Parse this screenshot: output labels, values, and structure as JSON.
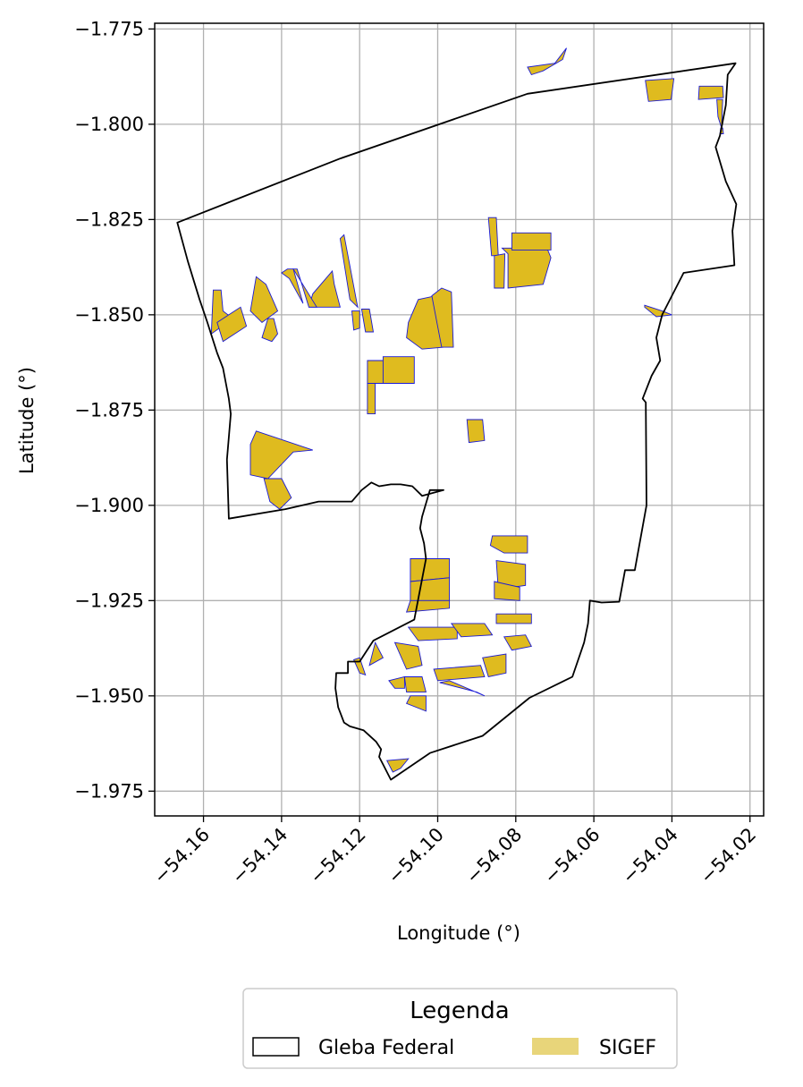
{
  "chart_data": {
    "type": "map",
    "xlabel": "Longitude (°)",
    "ylabel": "Latitude (°)",
    "xlim": [
      -54.1725,
      -54.0165
    ],
    "ylim": [
      -1.9815,
      -1.7735
    ],
    "xticks": [
      -54.16,
      -54.14,
      -54.12,
      -54.1,
      -54.08,
      -54.06,
      -54.04,
      -54.02
    ],
    "xtick_labels": [
      "−54.16",
      "−54.14",
      "−54.12",
      "−54.10",
      "−54.08",
      "−54.06",
      "−54.04",
      "−54.02"
    ],
    "yticks": [
      -1.775,
      -1.8,
      -1.825,
      -1.85,
      -1.875,
      -1.9,
      -1.925,
      -1.95,
      -1.975
    ],
    "ytick_labels": [
      "−1.775",
      "−1.800",
      "−1.825",
      "−1.850",
      "−1.875",
      "−1.900",
      "−1.925",
      "−1.950",
      "−1.975"
    ],
    "grid": true,
    "legend": {
      "title": "Legenda",
      "placement": "bottom-center, below axes",
      "entries": [
        {
          "label": "Gleba Federal",
          "style": "outline",
          "color": "#000000"
        },
        {
          "label": "SIGEF",
          "style": "fill",
          "color": "#e8d57a"
        }
      ]
    },
    "colors": {
      "gleba_outline": "#000000",
      "sigef_fill": "#dfbb1f",
      "sigef_edge": "#1a1ad6",
      "grid": "#b0b0b0"
    },
    "gleba_boundary": [
      [
        -54.1667,
        -1.8258
      ],
      [
        -54.125,
        -1.809
      ],
      [
        -54.077,
        -1.792
      ],
      [
        -54.0237,
        -1.784
      ],
      [
        -54.0257,
        -1.787
      ],
      [
        -54.0262,
        -1.795
      ],
      [
        -54.0277,
        -1.803
      ],
      [
        -54.0288,
        -1.806
      ],
      [
        -54.0262,
        -1.815
      ],
      [
        -54.0235,
        -1.821
      ],
      [
        -54.0245,
        -1.828
      ],
      [
        -54.024,
        -1.837
      ],
      [
        -54.037,
        -1.839
      ],
      [
        -54.0425,
        -1.85
      ],
      [
        -54.044,
        -1.856
      ],
      [
        -54.043,
        -1.862
      ],
      [
        -54.0452,
        -1.866
      ],
      [
        -54.0475,
        -1.872
      ],
      [
        -54.0467,
        -1.873
      ],
      [
        -54.0465,
        -1.9
      ],
      [
        -54.0495,
        -1.917
      ],
      [
        -54.052,
        -1.917
      ],
      [
        -54.0535,
        -1.9253
      ],
      [
        -54.058,
        -1.9255
      ],
      [
        -54.061,
        -1.925
      ],
      [
        -54.0615,
        -1.931
      ],
      [
        -54.0625,
        -1.936
      ],
      [
        -54.0655,
        -1.945
      ],
      [
        -54.0765,
        -1.9505
      ],
      [
        -54.0885,
        -1.9605
      ],
      [
        -54.102,
        -1.965
      ],
      [
        -54.112,
        -1.972
      ],
      [
        -54.114,
        -1.968
      ],
      [
        -54.115,
        -1.966
      ],
      [
        -54.1145,
        -1.964
      ],
      [
        -54.1158,
        -1.962
      ],
      [
        -54.119,
        -1.959
      ],
      [
        -54.1225,
        -1.958
      ],
      [
        -54.124,
        -1.957
      ],
      [
        -54.1255,
        -1.953
      ],
      [
        -54.1262,
        -1.948
      ],
      [
        -54.126,
        -1.944
      ],
      [
        -54.123,
        -1.944
      ],
      [
        -54.123,
        -1.941
      ],
      [
        -54.12,
        -1.941
      ],
      [
        -54.1165,
        -1.9355
      ],
      [
        -54.106,
        -1.93
      ],
      [
        -54.103,
        -1.914
      ],
      [
        -54.1035,
        -1.91
      ],
      [
        -54.1045,
        -1.906
      ],
      [
        -54.104,
        -1.903
      ],
      [
        -54.102,
        -1.896
      ],
      [
        -54.0985,
        -1.896
      ],
      [
        -54.104,
        -1.8975
      ],
      [
        -54.1065,
        -1.895
      ],
      [
        -54.1095,
        -1.8945
      ],
      [
        -54.112,
        -1.8945
      ],
      [
        -54.115,
        -1.895
      ],
      [
        -54.117,
        -1.894
      ],
      [
        -54.1195,
        -1.896
      ],
      [
        -54.122,
        -1.899
      ],
      [
        -54.124,
        -1.899
      ],
      [
        -54.128,
        -1.899
      ],
      [
        -54.1305,
        -1.899
      ],
      [
        -54.139,
        -1.901
      ],
      [
        -54.1535,
        -1.9035
      ],
      [
        -54.154,
        -1.888
      ],
      [
        -54.153,
        -1.876
      ],
      [
        -54.1535,
        -1.872
      ],
      [
        -54.155,
        -1.864
      ],
      [
        -54.1565,
        -1.86
      ],
      [
        -54.159,
        -1.852
      ],
      [
        -54.161,
        -1.846
      ],
      [
        -54.164,
        -1.836
      ],
      [
        -54.1667,
        -1.8258
      ]
    ],
    "sigef_parcels": [
      [
        [
          -54.067,
          -1.78
        ],
        [
          -54.068,
          -1.783
        ],
        [
          -54.073,
          -1.786
        ],
        [
          -54.076,
          -1.787
        ],
        [
          -54.077,
          -1.785
        ],
        [
          -54.07,
          -1.784
        ]
      ],
      [
        [
          -54.0468,
          -1.7885
        ],
        [
          -54.046,
          -1.794
        ],
        [
          -54.0402,
          -1.7935
        ],
        [
          -54.0395,
          -1.788
        ]
      ],
      [
        [
          -54.033,
          -1.79
        ],
        [
          -54.027,
          -1.79
        ],
        [
          -54.0268,
          -1.793
        ],
        [
          -54.0332,
          -1.7935
        ]
      ],
      [
        [
          -54.0285,
          -1.7935
        ],
        [
          -54.027,
          -1.7935
        ],
        [
          -54.0273,
          -1.801
        ],
        [
          -54.0282,
          -1.798
        ]
      ],
      [
        [
          -54.0275,
          -1.801
        ],
        [
          -54.027,
          -1.801
        ],
        [
          -54.0268,
          -1.8025
        ],
        [
          -54.0277,
          -1.8025
        ]
      ],
      [
        [
          -54.087,
          -1.8245
        ],
        [
          -54.085,
          -1.8245
        ],
        [
          -54.0845,
          -1.8345
        ],
        [
          -54.0862,
          -1.8345
        ]
      ],
      [
        [
          -54.0855,
          -1.8345
        ],
        [
          -54.0855,
          -1.843
        ],
        [
          -54.083,
          -1.843
        ],
        [
          -54.0828,
          -1.834
        ]
      ],
      [
        [
          -54.0835,
          -1.8325
        ],
        [
          -54.082,
          -1.834
        ],
        [
          -54.082,
          -1.843
        ],
        [
          -54.073,
          -1.842
        ],
        [
          -54.071,
          -1.835
        ],
        [
          -54.072,
          -1.8325
        ]
      ],
      [
        [
          -54.081,
          -1.8285
        ],
        [
          -54.071,
          -1.8285
        ],
        [
          -54.071,
          -1.833
        ],
        [
          -54.081,
          -1.833
        ]
      ],
      [
        [
          -54.125,
          -1.83
        ],
        [
          -54.124,
          -1.829
        ],
        [
          -54.1205,
          -1.848
        ],
        [
          -54.1225,
          -1.846
        ]
      ],
      [
        [
          -54.133,
          -1.848
        ],
        [
          -54.125,
          -1.848
        ],
        [
          -54.1265,
          -1.842
        ],
        [
          -54.127,
          -1.8385
        ],
        [
          -54.132,
          -1.8445
        ]
      ],
      [
        [
          -54.137,
          -1.838
        ],
        [
          -54.136,
          -1.838
        ],
        [
          -54.133,
          -1.848
        ],
        [
          -54.131,
          -1.848
        ]
      ],
      [
        [
          -54.14,
          -1.839
        ],
        [
          -54.1385,
          -1.838
        ],
        [
          -54.137,
          -1.838
        ],
        [
          -54.1345,
          -1.847
        ],
        [
          -54.138,
          -1.8405
        ]
      ],
      [
        [
          -54.1465,
          -1.84
        ],
        [
          -54.144,
          -1.842
        ],
        [
          -54.141,
          -1.849
        ],
        [
          -54.145,
          -1.852
        ],
        [
          -54.148,
          -1.849
        ]
      ],
      [
        [
          -54.145,
          -1.856
        ],
        [
          -54.1425,
          -1.857
        ],
        [
          -54.141,
          -1.855
        ],
        [
          -54.142,
          -1.851
        ],
        [
          -54.1435,
          -1.851
        ]
      ],
      [
        [
          -54.1575,
          -1.8435
        ],
        [
          -54.1555,
          -1.8435
        ],
        [
          -54.155,
          -1.849
        ],
        [
          -54.1525,
          -1.851
        ],
        [
          -54.158,
          -1.855
        ]
      ],
      [
        [
          -54.1565,
          -1.852
        ],
        [
          -54.1505,
          -1.848
        ],
        [
          -54.149,
          -1.853
        ],
        [
          -54.155,
          -1.857
        ]
      ],
      [
        [
          -54.122,
          -1.849
        ],
        [
          -54.1215,
          -1.854
        ],
        [
          -54.12,
          -1.8535
        ],
        [
          -54.12,
          -1.849
        ]
      ],
      [
        [
          -54.1195,
          -1.8485
        ],
        [
          -54.1185,
          -1.8545
        ],
        [
          -54.1165,
          -1.8545
        ],
        [
          -54.1175,
          -1.8485
        ]
      ],
      [
        [
          -54.108,
          -1.856
        ],
        [
          -54.1075,
          -1.852
        ],
        [
          -54.105,
          -1.846
        ],
        [
          -54.1005,
          -1.845
        ],
        [
          -54.099,
          -1.848
        ],
        [
          -54.0985,
          -1.8585
        ],
        [
          -54.104,
          -1.859
        ]
      ],
      [
        [
          -54.1015,
          -1.845
        ],
        [
          -54.099,
          -1.843
        ],
        [
          -54.0965,
          -1.844
        ],
        [
          -54.096,
          -1.8585
        ],
        [
          -54.099,
          -1.8585
        ]
      ],
      [
        [
          -54.118,
          -1.862
        ],
        [
          -54.113,
          -1.862
        ],
        [
          -54.1125,
          -1.868
        ],
        [
          -54.118,
          -1.868
        ]
      ],
      [
        [
          -54.114,
          -1.861
        ],
        [
          -54.106,
          -1.861
        ],
        [
          -54.106,
          -1.868
        ],
        [
          -54.114,
          -1.868
        ]
      ],
      [
        [
          -54.118,
          -1.868
        ],
        [
          -54.116,
          -1.868
        ],
        [
          -54.116,
          -1.876
        ],
        [
          -54.118,
          -1.876
        ]
      ],
      [
        [
          -54.0925,
          -1.8775
        ],
        [
          -54.0885,
          -1.8775
        ],
        [
          -54.088,
          -1.883
        ],
        [
          -54.092,
          -1.8835
        ]
      ],
      [
        [
          -54.1465,
          -1.8805
        ],
        [
          -54.148,
          -1.884
        ],
        [
          -54.148,
          -1.892
        ],
        [
          -54.1435,
          -1.893
        ],
        [
          -54.137,
          -1.886
        ],
        [
          -54.132,
          -1.8855
        ]
      ],
      [
        [
          -54.1445,
          -1.893
        ],
        [
          -54.14,
          -1.893
        ],
        [
          -54.1375,
          -1.898
        ],
        [
          -54.1405,
          -1.901
        ],
        [
          -54.143,
          -1.899
        ]
      ],
      [
        [
          -54.0865,
          -1.9105
        ],
        [
          -54.086,
          -1.908
        ],
        [
          -54.077,
          -1.908
        ],
        [
          -54.077,
          -1.9125
        ],
        [
          -54.083,
          -1.9125
        ]
      ],
      [
        [
          -54.085,
          -1.9145
        ],
        [
          -54.0775,
          -1.9155
        ],
        [
          -54.0775,
          -1.921
        ],
        [
          -54.0845,
          -1.922
        ]
      ],
      [
        [
          -54.0855,
          -1.92
        ],
        [
          -54.079,
          -1.9215
        ],
        [
          -54.079,
          -1.925
        ],
        [
          -54.0855,
          -1.9245
        ]
      ],
      [
        [
          -54.107,
          -1.914
        ],
        [
          -54.097,
          -1.914
        ],
        [
          -54.097,
          -1.919
        ],
        [
          -54.107,
          -1.92
        ]
      ],
      [
        [
          -54.107,
          -1.92
        ],
        [
          -54.097,
          -1.919
        ],
        [
          -54.097,
          -1.925
        ],
        [
          -54.107,
          -1.925
        ]
      ],
      [
        [
          -54.107,
          -1.925
        ],
        [
          -54.097,
          -1.925
        ],
        [
          -54.097,
          -1.927
        ],
        [
          -54.108,
          -1.928
        ]
      ],
      [
        [
          -54.085,
          -1.9285
        ],
        [
          -54.076,
          -1.9285
        ],
        [
          -54.076,
          -1.931
        ],
        [
          -54.085,
          -1.931
        ]
      ],
      [
        [
          -54.1075,
          -1.932
        ],
        [
          -54.095,
          -1.932
        ],
        [
          -54.095,
          -1.935
        ],
        [
          -54.105,
          -1.9355
        ]
      ],
      [
        [
          -54.0965,
          -1.931
        ],
        [
          -54.088,
          -1.931
        ],
        [
          -54.086,
          -1.934
        ],
        [
          -54.094,
          -1.9345
        ]
      ],
      [
        [
          -54.083,
          -1.9345
        ],
        [
          -54.0775,
          -1.934
        ],
        [
          -54.076,
          -1.937
        ],
        [
          -54.081,
          -1.938
        ]
      ],
      [
        [
          -54.111,
          -1.936
        ],
        [
          -54.105,
          -1.937
        ],
        [
          -54.104,
          -1.942
        ],
        [
          -54.108,
          -1.943
        ]
      ],
      [
        [
          -54.101,
          -1.943
        ],
        [
          -54.089,
          -1.942
        ],
        [
          -54.088,
          -1.945
        ],
        [
          -54.1,
          -1.946
        ]
      ],
      [
        [
          -54.0885,
          -1.94
        ],
        [
          -54.0825,
          -1.939
        ],
        [
          -54.0825,
          -1.944
        ],
        [
          -54.087,
          -1.945
        ]
      ],
      [
        [
          -54.1085,
          -1.945
        ],
        [
          -54.104,
          -1.945
        ],
        [
          -54.103,
          -1.949
        ],
        [
          -54.108,
          -1.949
        ]
      ],
      [
        [
          -54.1125,
          -1.946
        ],
        [
          -54.111,
          -1.948
        ],
        [
          -54.1085,
          -1.948
        ],
        [
          -54.1085,
          -1.945
        ]
      ],
      [
        [
          -54.0995,
          -1.9465
        ],
        [
          -54.09,
          -1.949
        ],
        [
          -54.088,
          -1.95
        ],
        [
          -54.097,
          -1.946
        ]
      ],
      [
        [
          -54.107,
          -1.95
        ],
        [
          -54.103,
          -1.95
        ],
        [
          -54.103,
          -1.954
        ],
        [
          -54.108,
          -1.952
        ]
      ],
      [
        [
          -54.1215,
          -1.9405
        ],
        [
          -54.12,
          -1.944
        ],
        [
          -54.1185,
          -1.9445
        ],
        [
          -54.12,
          -1.94
        ]
      ],
      [
        [
          -54.116,
          -1.936
        ],
        [
          -54.114,
          -1.94
        ],
        [
          -54.1175,
          -1.942
        ]
      ],
      [
        [
          -54.113,
          -1.967
        ],
        [
          -54.1115,
          -1.97
        ],
        [
          -54.1095,
          -1.969
        ],
        [
          -54.1075,
          -1.9665
        ]
      ],
      [
        [
          -54.047,
          -1.8475
        ],
        [
          -54.0425,
          -1.849
        ],
        [
          -54.04,
          -1.85
        ],
        [
          -54.044,
          -1.8505
        ],
        [
          -54.047,
          -1.848
        ]
      ]
    ]
  }
}
